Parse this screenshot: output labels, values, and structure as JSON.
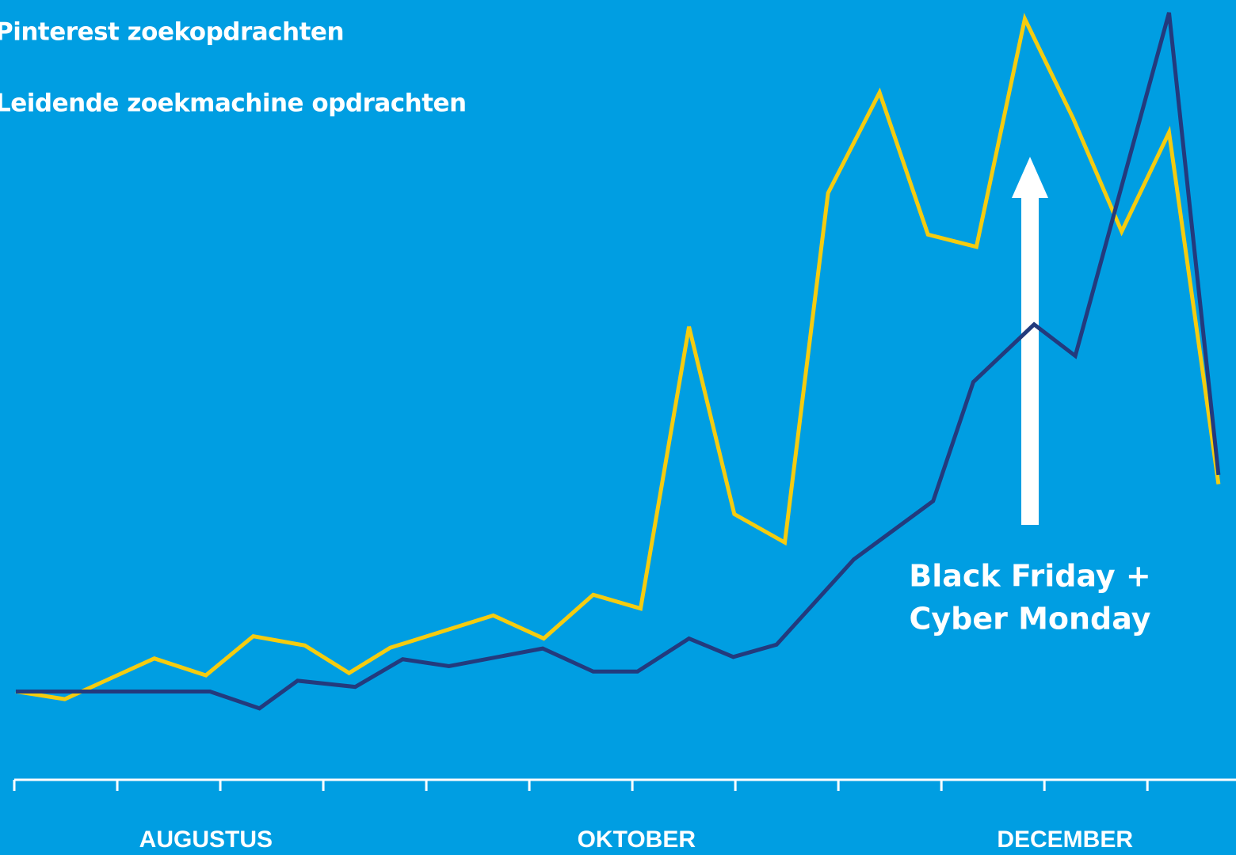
{
  "chart_data": {
    "type": "line",
    "series": [
      {
        "name": "Pinterest zoekopdrachten",
        "color": "#f5cc0f",
        "x": [
          0.015,
          0.49,
          1.36,
          1.86,
          2.32,
          2.82,
          3.25,
          3.65,
          4.65,
          5.14,
          5.62,
          6.08,
          6.55,
          6.99,
          7.48,
          7.9,
          8.4,
          8.87,
          9.34,
          9.81,
          10.28,
          10.75,
          11.21,
          11.69
        ],
        "values": [
          11.5,
          10.5,
          15.8,
          13.6,
          18.7,
          17.5,
          13.9,
          17.2,
          21.4,
          18.4,
          24.1,
          22.3,
          59.0,
          34.6,
          30.9,
          76.4,
          89.5,
          71.0,
          69.4,
          99.1,
          86.1,
          71.4,
          84.3,
          38.5
        ]
      },
      {
        "name": "Leidende zoekmachine opdrachten",
        "color": "#233a7d",
        "x": [
          0.015,
          1.9,
          2.38,
          2.75,
          3.31,
          3.77,
          4.22,
          5.13,
          5.62,
          6.05,
          6.55,
          6.98,
          7.4,
          8.15,
          8.92,
          9.31,
          9.9,
          10.3,
          11.21,
          11.69
        ],
        "values": [
          11.5,
          11.5,
          9.3,
          12.9,
          12.1,
          15.7,
          14.8,
          17.1,
          14.1,
          14.1,
          18.4,
          16.0,
          17.6,
          28.7,
          36.3,
          51.8,
          59.3,
          55.2,
          99.9,
          39.7
        ]
      }
    ],
    "xlim": [
      0,
      11.86
    ],
    "xticks": [
      0,
      1,
      2,
      3,
      4,
      5,
      6,
      7,
      8,
      9,
      10,
      11
    ],
    "month_labels": [
      {
        "value": 1.86,
        "label": "AUGUSTUS"
      },
      {
        "value": 6.04,
        "label": "OKTOBER"
      },
      {
        "value": 10.2,
        "label": "DECEMBER"
      }
    ],
    "ylim": [
      0,
      100
    ],
    "annotation": [
      "Black Friday +",
      "Cyber Monday"
    ]
  }
}
